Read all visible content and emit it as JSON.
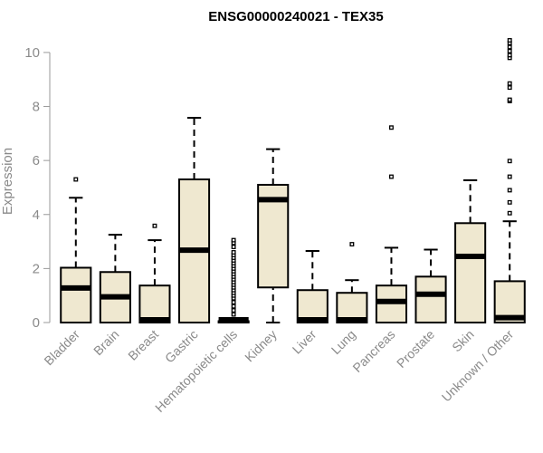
{
  "chart_data": {
    "type": "boxplot",
    "title": "ENSG00000240021 - TEX35",
    "ylabel": "Expression",
    "xlabel": "",
    "ylim": [
      0,
      10.5
    ],
    "yticks": [
      0,
      2,
      4,
      6,
      8,
      10
    ],
    "grid": false,
    "box_color": "#efe8d0",
    "categories": [
      "Bladder",
      "Brain",
      "Breast",
      "Gastric",
      "Hematopoietic cells",
      "Kidney",
      "Liver",
      "Lung",
      "Pancreas",
      "Prostate",
      "Skin",
      "Unknown / Other"
    ],
    "boxes": [
      {
        "whisker_low": 0,
        "q1": 0,
        "median": 1.28,
        "q3": 2.03,
        "whisker_high": 4.62,
        "outliers": [
          5.3
        ]
      },
      {
        "whisker_low": 0,
        "q1": 0,
        "median": 0.95,
        "q3": 1.87,
        "whisker_high": 3.25,
        "outliers": []
      },
      {
        "whisker_low": 0,
        "q1": 0,
        "median": 0.03,
        "q3": 1.37,
        "whisker_high": 3.05,
        "outliers": [
          3.58
        ]
      },
      {
        "whisker_low": 0,
        "q1": 0,
        "median": 2.68,
        "q3": 5.3,
        "whisker_high": 7.58,
        "outliers": []
      },
      {
        "whisker_low": 0,
        "q1": 0,
        "median": 0.02,
        "q3": 0.05,
        "whisker_high": 0.1,
        "outliers": [
          0.3,
          0.45,
          0.6,
          0.75,
          0.9,
          1.0,
          1.1,
          1.2,
          1.3,
          1.4,
          1.5,
          1.6,
          1.7,
          1.8,
          1.9,
          2.0,
          2.1,
          2.2,
          2.3,
          2.4,
          2.5,
          2.6,
          2.8,
          2.95,
          3.05
        ]
      },
      {
        "whisker_low": 0,
        "q1": 1.3,
        "median": 4.55,
        "q3": 5.1,
        "whisker_high": 6.42,
        "outliers": []
      },
      {
        "whisker_low": 0,
        "q1": 0,
        "median": 0.03,
        "q3": 1.2,
        "whisker_high": 2.65,
        "outliers": []
      },
      {
        "whisker_low": 0,
        "q1": 0,
        "median": 0.03,
        "q3": 1.1,
        "whisker_high": 1.57,
        "outliers": [
          2.9
        ]
      },
      {
        "whisker_low": 0,
        "q1": 0,
        "median": 0.78,
        "q3": 1.37,
        "whisker_high": 2.77,
        "outliers": [
          5.4,
          7.22
        ]
      },
      {
        "whisker_low": 0,
        "q1": 0,
        "median": 1.05,
        "q3": 1.7,
        "whisker_high": 2.7,
        "outliers": []
      },
      {
        "whisker_low": 0,
        "q1": 0,
        "median": 2.45,
        "q3": 3.68,
        "whisker_high": 5.27,
        "outliers": []
      },
      {
        "whisker_low": 0,
        "q1": 0,
        "median": 0.18,
        "q3": 1.53,
        "whisker_high": 3.75,
        "outliers": [
          4.05,
          4.45,
          4.9,
          5.4,
          5.98,
          8.2,
          8.25,
          8.7,
          8.85,
          9.8,
          9.9,
          10.05,
          10.2,
          10.35,
          10.45
        ]
      }
    ]
  }
}
